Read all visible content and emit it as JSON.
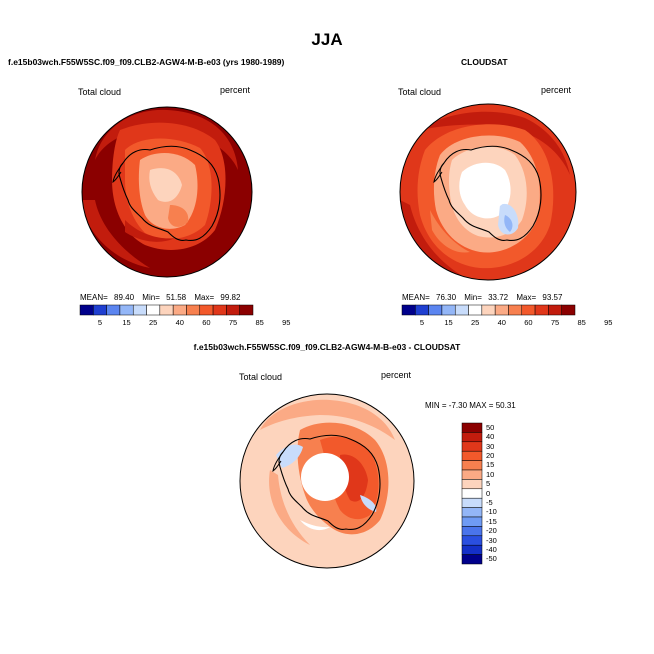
{
  "title": "JJA",
  "panels": {
    "model": {
      "title": "f.e15b03wch.F55W5SC.f09_f09.CLB2-AGW4-M-B-e03 (yrs 1980-1989)",
      "left_label": "Total cloud",
      "right_label": "percent",
      "mean_label": "MEAN=",
      "mean": "89.40",
      "min_label": "Min=",
      "min": "51.58",
      "max_label": "Max=",
      "max": "99.82"
    },
    "obs": {
      "title": "CLOUDSAT",
      "left_label": "Total cloud",
      "right_label": "percent",
      "mean_label": "MEAN=",
      "mean": "76.30",
      "min_label": "Min=",
      "min": "33.72",
      "max_label": "Max=",
      "max": "93.57"
    },
    "diff": {
      "title": "f.e15b03wch.F55W5SC.f09_f09.CLB2-AGW4-M-B-e03 - CLOUDSAT",
      "left_label": "Total cloud",
      "right_label": "percent",
      "stats": "MIN =  -7.30 MAX =  50.31"
    }
  },
  "colorbar_abs": {
    "ticks": [
      "5",
      "15",
      "25",
      "40",
      "60",
      "75",
      "85",
      "95"
    ],
    "colors": [
      "#00008b",
      "#1f3fd1",
      "#5b85f0",
      "#93b6f7",
      "#c8dcfb",
      "#ffffff",
      "#fdd4bd",
      "#fbaa85",
      "#f7804f",
      "#f2592b",
      "#e0371a",
      "#c21c0d",
      "#8b0000"
    ]
  },
  "colorbar_diff": {
    "ticks": [
      "50",
      "40",
      "30",
      "20",
      "15",
      "10",
      "5",
      "0",
      "-5",
      "-10",
      "-15",
      "-20",
      "-30",
      "-40",
      "-50"
    ],
    "colors": [
      "#8b0000",
      "#c21c0d",
      "#e0371a",
      "#f2592b",
      "#f7804f",
      "#fbaa85",
      "#fdd4bd",
      "#ffffff",
      "#c8dcfb",
      "#93b6f7",
      "#6f9bf4",
      "#4a74eb",
      "#2a4fe0",
      "#1430c8",
      "#00008b"
    ]
  }
}
